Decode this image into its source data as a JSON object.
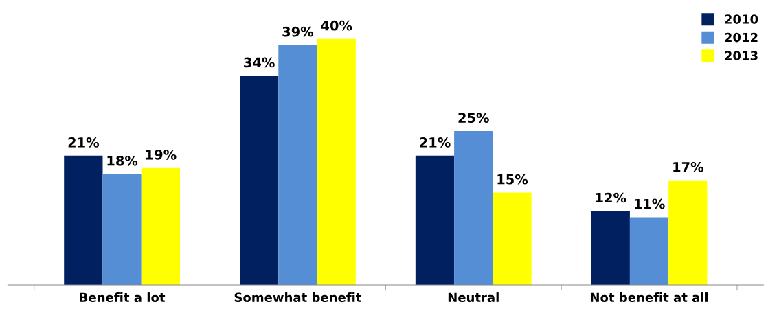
{
  "chart_data": {
    "type": "bar",
    "categories": [
      "Benefit a lot",
      "Somewhat benefit",
      "Neutral",
      "Not benefit at all"
    ],
    "series": [
      {
        "name": "2010",
        "color": "#002060",
        "values": [
          21,
          34,
          21,
          12
        ],
        "value_labels": [
          "21%",
          "34%",
          "21%",
          "12%"
        ]
      },
      {
        "name": "2012",
        "color": "#558ed5",
        "values": [
          18,
          39,
          25,
          11
        ],
        "value_labels": [
          "18%",
          "39%",
          "25%",
          "11%"
        ]
      },
      {
        "name": "2013",
        "color": "#ffff00",
        "values": [
          19,
          40,
          15,
          17
        ],
        "value_labels": [
          "19%",
          "40%",
          "15%",
          "17%"
        ]
      }
    ],
    "tick_labels": "x",
    "legend": "top right",
    "grid": false
  }
}
